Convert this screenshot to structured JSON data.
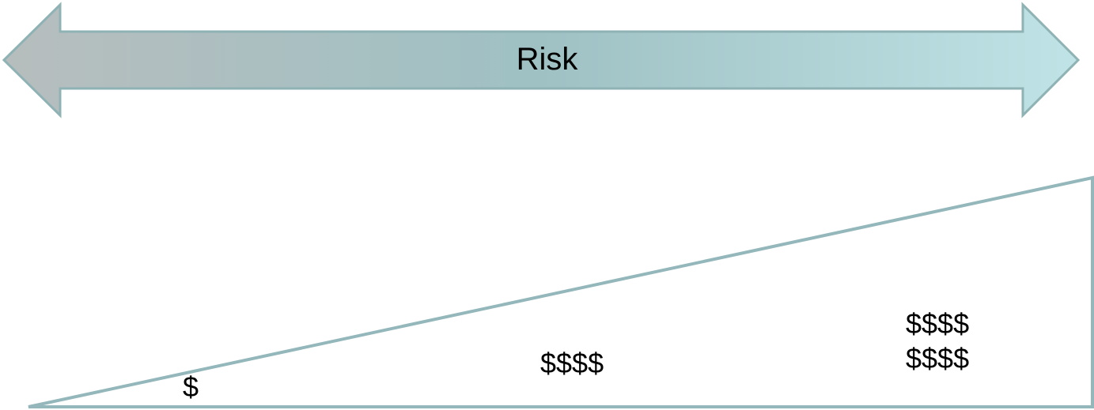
{
  "colors": {
    "arrow_gradient_start": "#b7bdbd",
    "arrow_gradient_mid": "#9fc1c4",
    "arrow_gradient_end": "#bfe3e6",
    "arrow_stroke": "#8fb2b4",
    "wedge_stroke": "#93b7ba",
    "text": "#000000"
  },
  "risk_arrow": {
    "label": "Risk",
    "direction": "bidirectional"
  },
  "cost_wedge": {
    "low_cost": "$",
    "mid_cost": "$$$$",
    "high_cost_lines": [
      "$$$$",
      "$$$$"
    ]
  }
}
